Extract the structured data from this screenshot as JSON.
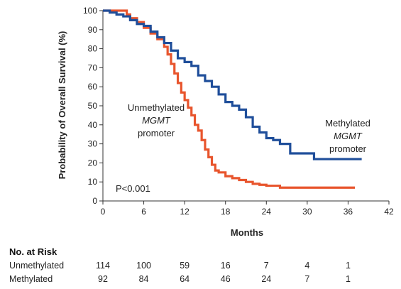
{
  "chart_data": {
    "type": "line",
    "xlabel": "Months",
    "ylabel": "Probability of Overall Survival (%)",
    "xlim": [
      0,
      42
    ],
    "ylim": [
      0,
      100
    ],
    "xticks": [
      0,
      6,
      12,
      18,
      24,
      30,
      36,
      42
    ],
    "yticks": [
      0,
      10,
      20,
      30,
      40,
      50,
      60,
      70,
      80,
      90,
      100
    ],
    "grid": false,
    "annotations": {
      "pvalue": "P<0.001",
      "unmethylated": [
        "Unmethylated",
        "MGMT",
        "promoter"
      ],
      "methylated": [
        "Methylated",
        "MGMT",
        "promoter"
      ]
    },
    "series": [
      {
        "name": "Unmethylated MGMT promoter",
        "color": "#e8552d",
        "points": [
          [
            0,
            100
          ],
          [
            2,
            100
          ],
          [
            3.5,
            98
          ],
          [
            4,
            96
          ],
          [
            5,
            94
          ],
          [
            6,
            91
          ],
          [
            7,
            88
          ],
          [
            8,
            85
          ],
          [
            9,
            81
          ],
          [
            9.5,
            77
          ],
          [
            10,
            72
          ],
          [
            10.5,
            67
          ],
          [
            11,
            62
          ],
          [
            11.5,
            57
          ],
          [
            12,
            53
          ],
          [
            12.5,
            49
          ],
          [
            13,
            45
          ],
          [
            13.5,
            40
          ],
          [
            14,
            37
          ],
          [
            14.5,
            32
          ],
          [
            15,
            27
          ],
          [
            15.5,
            23
          ],
          [
            16,
            19
          ],
          [
            16.5,
            16
          ],
          [
            17,
            15
          ],
          [
            18,
            13
          ],
          [
            19,
            12
          ],
          [
            20,
            11
          ],
          [
            21,
            10
          ],
          [
            22,
            9
          ],
          [
            23,
            8.5
          ],
          [
            24,
            8
          ],
          [
            25,
            8
          ],
          [
            26,
            7
          ],
          [
            28,
            7
          ],
          [
            30,
            7
          ],
          [
            33,
            7
          ],
          [
            36,
            7
          ],
          [
            37,
            7
          ]
        ]
      },
      {
        "name": "Methylated MGMT promoter",
        "color": "#1f4e9a",
        "points": [
          [
            0,
            100
          ],
          [
            1,
            99
          ],
          [
            2,
            98
          ],
          [
            3,
            97
          ],
          [
            4,
            95
          ],
          [
            5,
            93
          ],
          [
            6,
            92
          ],
          [
            7,
            89
          ],
          [
            8,
            86
          ],
          [
            9,
            83
          ],
          [
            10,
            79
          ],
          [
            11,
            75
          ],
          [
            12,
            73
          ],
          [
            13,
            71
          ],
          [
            14,
            66
          ],
          [
            15,
            63
          ],
          [
            16,
            60
          ],
          [
            17,
            56
          ],
          [
            18,
            52
          ],
          [
            19,
            50
          ],
          [
            20,
            48
          ],
          [
            21,
            44
          ],
          [
            22,
            39
          ],
          [
            23,
            36
          ],
          [
            24,
            33
          ],
          [
            25,
            32
          ],
          [
            26,
            30
          ],
          [
            27,
            30
          ],
          [
            27.5,
            25
          ],
          [
            29,
            25
          ],
          [
            30,
            25
          ],
          [
            31,
            22
          ],
          [
            33,
            22
          ],
          [
            35,
            22
          ],
          [
            38,
            22
          ]
        ]
      }
    ]
  },
  "at_risk": {
    "title": "No. at Risk",
    "rows": [
      {
        "label": "Unmethylated",
        "values": [
          "114",
          "100",
          "59",
          "16",
          "7",
          "4",
          "1"
        ]
      },
      {
        "label": "Methylated",
        "values": [
          "92",
          "84",
          "64",
          "46",
          "24",
          "7",
          "1"
        ]
      }
    ]
  }
}
